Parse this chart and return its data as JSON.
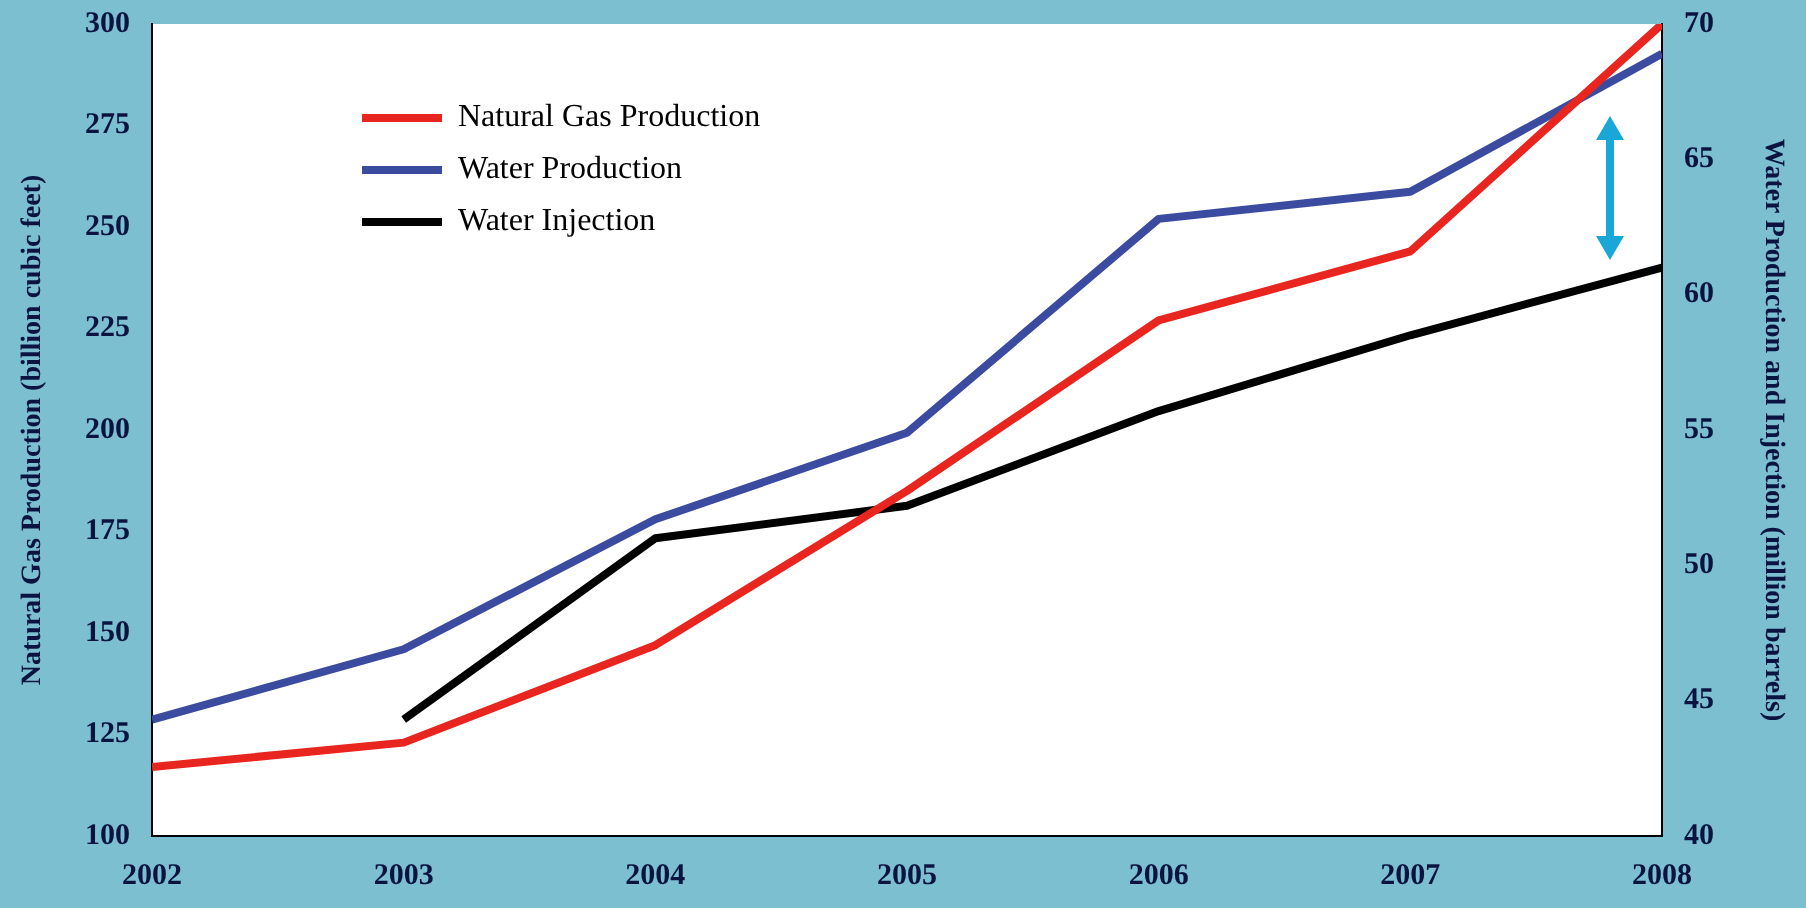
{
  "chart_data": {
    "type": "line",
    "ylabel": "Natural Gas Production (billion cubic feet)",
    "y2label": "Water Production and Injection (million barrels)",
    "x": [
      2002,
      2003,
      2004,
      2005,
      2006,
      2007,
      2008
    ],
    "xlim": [
      2002,
      2008
    ],
    "xticks": [
      2002,
      2003,
      2004,
      2005,
      2006,
      2007,
      2008
    ],
    "ylim": [
      100,
      300
    ],
    "yticks": [
      100,
      125,
      150,
      175,
      200,
      225,
      250,
      275,
      300
    ],
    "y2lim": [
      40,
      70
    ],
    "y2ticks": [
      40,
      45,
      50,
      55,
      60,
      65,
      70
    ],
    "legend": "top left",
    "marker": "none",
    "line_style": "solid",
    "series": [
      {
        "name": "Natural Gas Production",
        "color": "#e8251f",
        "values": [
          117,
          123,
          147,
          185,
          227,
          244,
          300
        ]
      },
      {
        "name": "Water Production",
        "color": "#3a4ba0",
        "axis": "y2",
        "values": [
          44.3,
          46.9,
          51.7,
          54.9,
          62.8,
          63.8,
          68.9
        ]
      },
      {
        "name": "Water Injection",
        "color": "#000000",
        "axis": "y2",
        "values": [
          null,
          44.3,
          51.0,
          52.2,
          55.7,
          58.5,
          61.0
        ]
      }
    ]
  }
}
